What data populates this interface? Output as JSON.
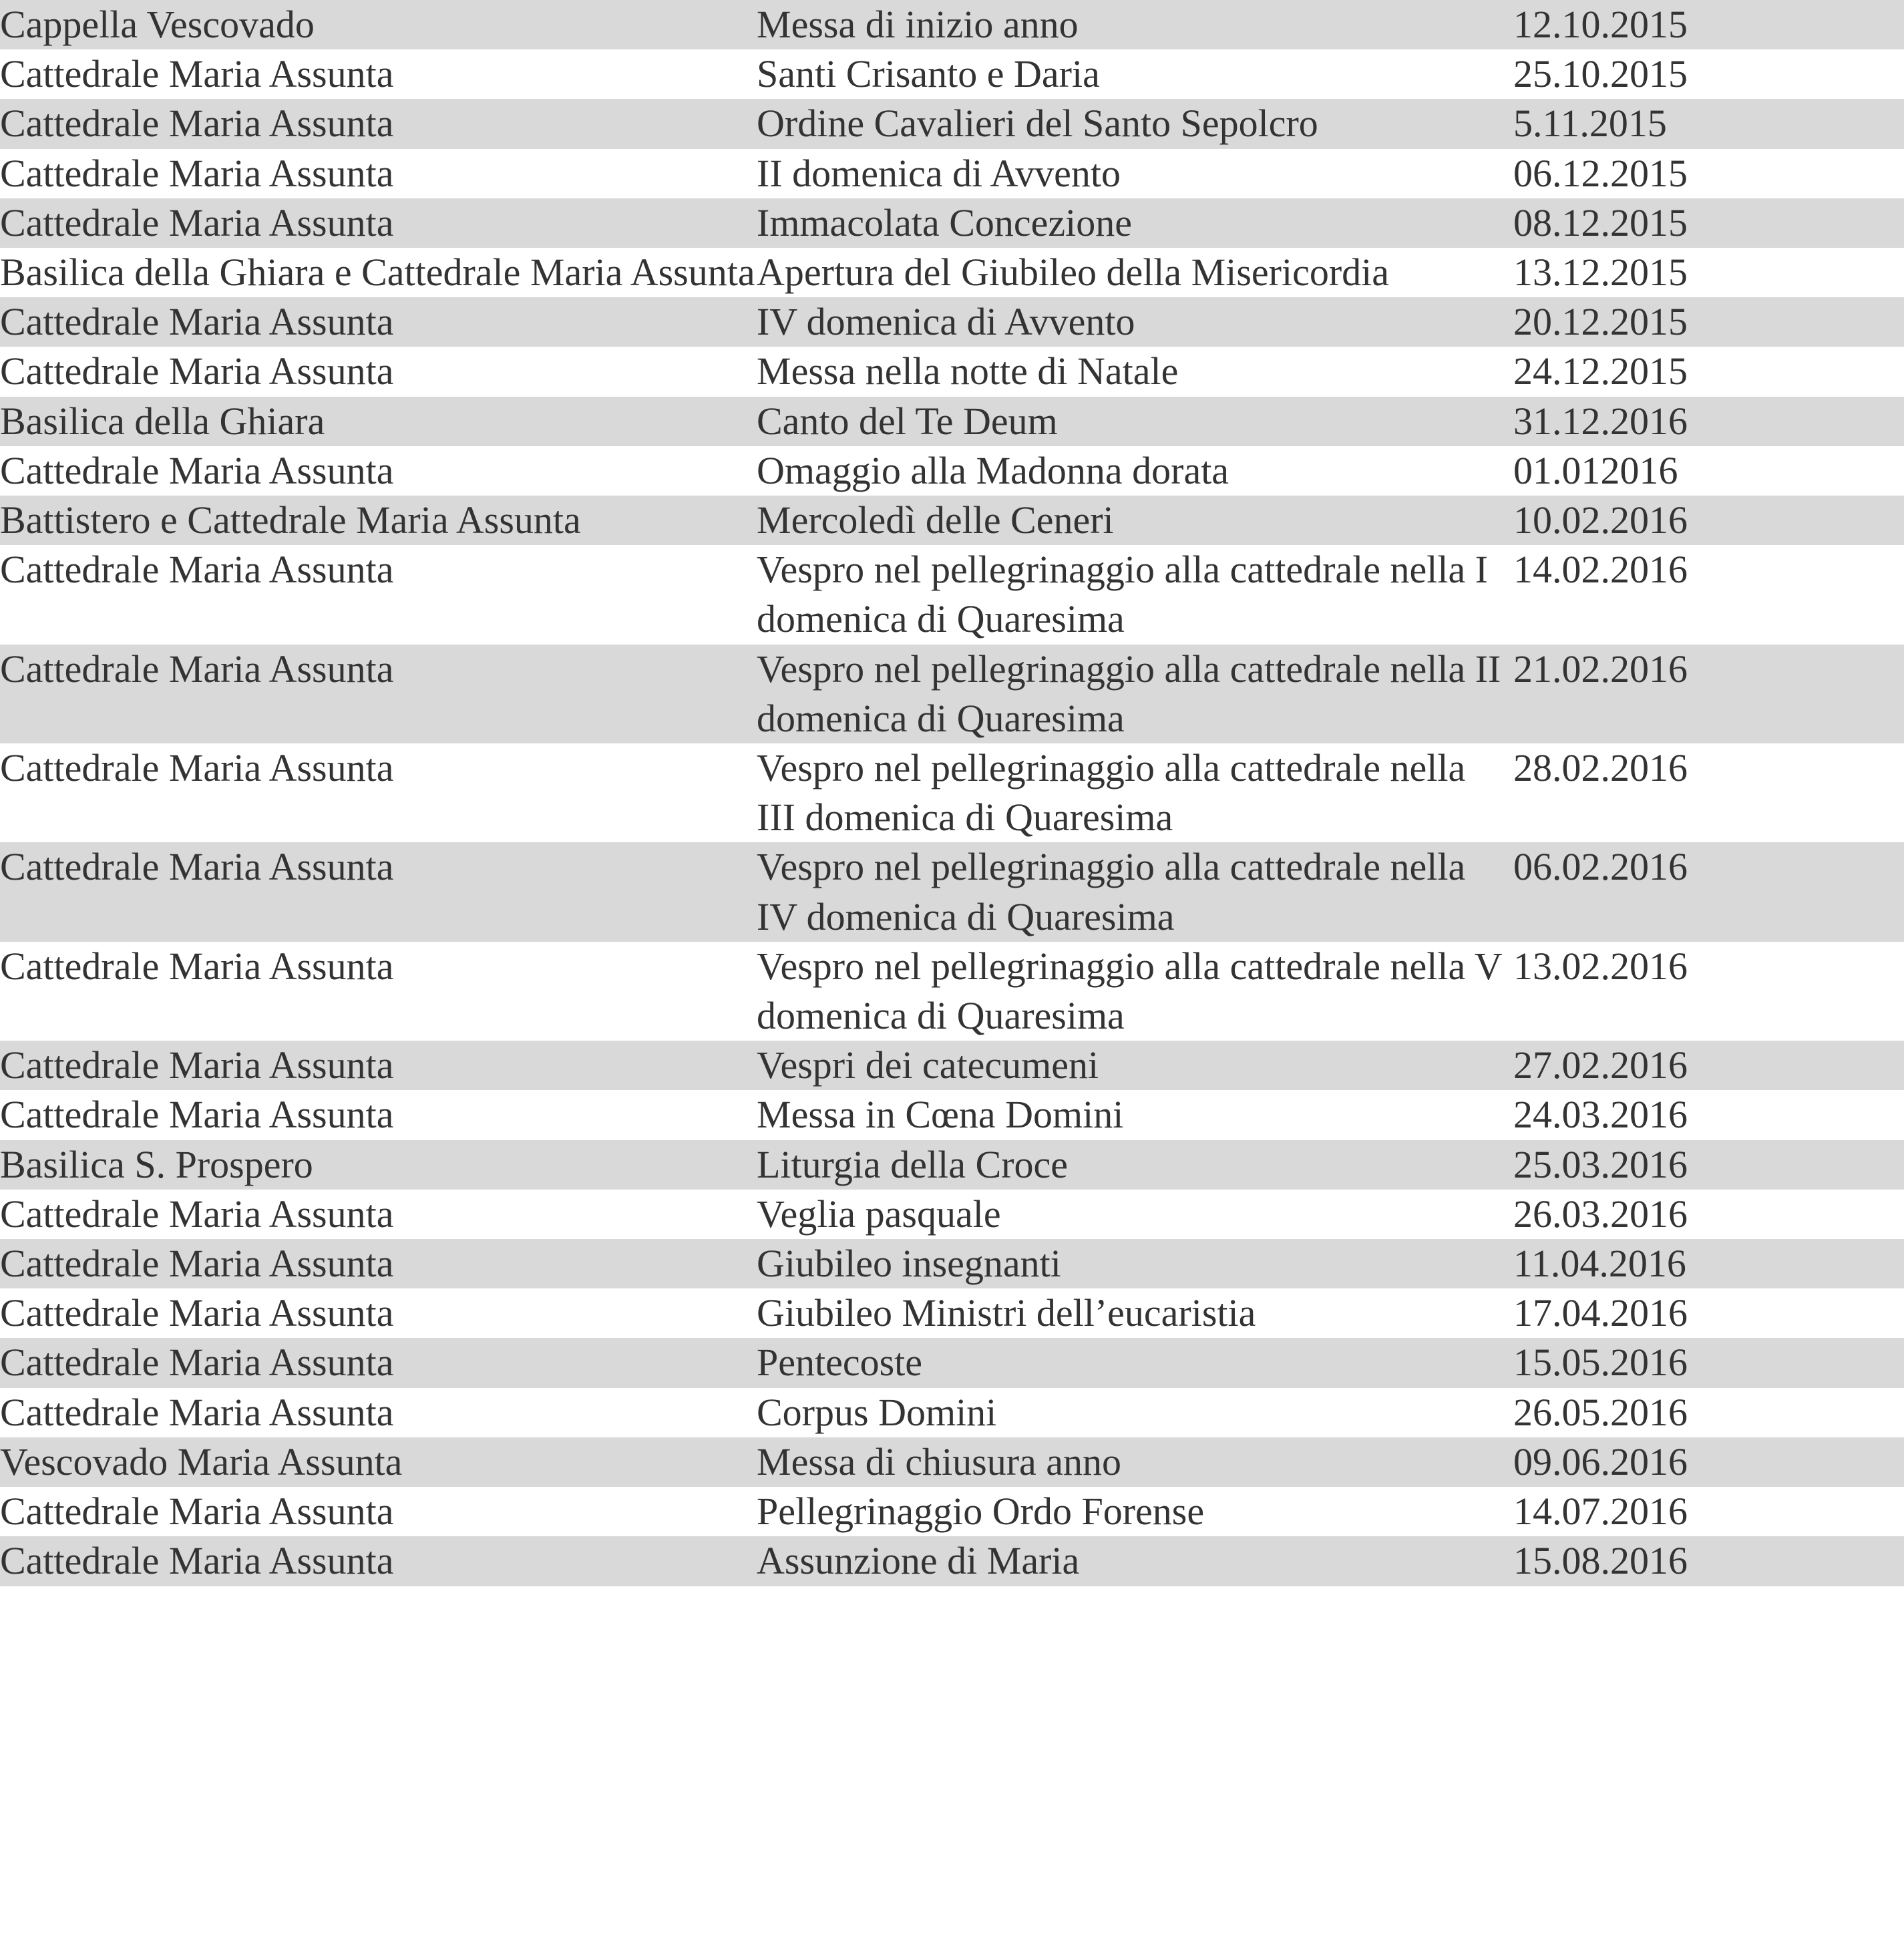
{
  "table": {
    "rows": [
      [
        "Cappella Vescovado",
        "Messa di inizio anno",
        "12.10.2015"
      ],
      [
        "Cattedrale Maria Assunta",
        "Santi Crisanto e Daria",
        "25.10.2015"
      ],
      [
        "Cattedrale Maria Assunta",
        "Ordine Cavalieri del Santo Sepolcro",
        "5.11.2015"
      ],
      [
        "Cattedrale Maria Assunta",
        "II domenica di Avvento",
        "06.12.2015"
      ],
      [
        "Cattedrale Maria Assunta",
        "Immacolata Concezione",
        "08.12.2015"
      ],
      [
        "Basilica della Ghiara e Cattedrale Maria Assunta",
        "Apertura del Giubileo della Misericordia",
        "13.12.2015"
      ],
      [
        "Cattedrale Maria Assunta",
        "IV domenica di Avvento",
        "20.12.2015"
      ],
      [
        "Cattedrale Maria Assunta",
        "Messa nella notte di Natale",
        "24.12.2015"
      ],
      [
        "Basilica della Ghiara",
        "Canto del Te Deum",
        "31.12.2016"
      ],
      [
        "Cattedrale Maria Assunta",
        "Omaggio alla Madonna dorata",
        "01.012016"
      ],
      [
        "Battistero e Cattedrale Maria Assunta",
        "Mercoledì delle Ceneri",
        "10.02.2016"
      ],
      [
        "Cattedrale Maria Assunta",
        "Vespro nel pellegrinaggio alla cattedrale nella I domenica di Quaresima",
        "14.02.2016"
      ],
      [
        "Cattedrale Maria Assunta",
        "Vespro nel pellegrinaggio alla cattedrale nella II domenica di Quaresima",
        "21.02.2016"
      ],
      [
        "Cattedrale Maria Assunta",
        "Vespro nel pellegrinaggio alla cattedrale nella III domenica di Quaresima",
        "28.02.2016"
      ],
      [
        "Cattedrale Maria Assunta",
        "Vespro nel pellegrinaggio alla cattedrale nella IV domenica di Quaresima",
        "06.02.2016"
      ],
      [
        "Cattedrale Maria Assunta",
        "Vespro nel pellegrinaggio alla cattedrale nella V domenica di Quaresima",
        "13.02.2016"
      ],
      [
        "Cattedrale Maria Assunta",
        "Vespri dei catecumeni",
        "27.02.2016"
      ],
      [
        "Cattedrale Maria Assunta",
        "Messa in Cœna Domini",
        "24.03.2016"
      ],
      [
        "Basilica S. Prospero",
        "Liturgia della Croce",
        "25.03.2016"
      ],
      [
        "Cattedrale Maria Assunta",
        "Veglia pasquale",
        "26.03.2016"
      ],
      [
        "Cattedrale Maria Assunta",
        "Giubileo insegnanti",
        "11.04.2016"
      ],
      [
        "Cattedrale Maria Assunta",
        "Giubileo Ministri dell’eucaristia",
        "17.04.2016"
      ],
      [
        "Cattedrale Maria Assunta",
        "Pentecoste",
        "15.05.2016"
      ],
      [
        "Cattedrale Maria Assunta",
        "Corpus Domini",
        "26.05.2016"
      ],
      [
        "Vescovado Maria Assunta",
        "Messa di chiusura anno",
        "09.06.2016"
      ],
      [
        "Cattedrale Maria Assunta",
        "Pellegrinaggio Ordo Forense",
        "14.07.2016"
      ],
      [
        "Cattedrale Maria Assunta",
        "Assunzione di Maria",
        "15.08.2016"
      ]
    ]
  }
}
